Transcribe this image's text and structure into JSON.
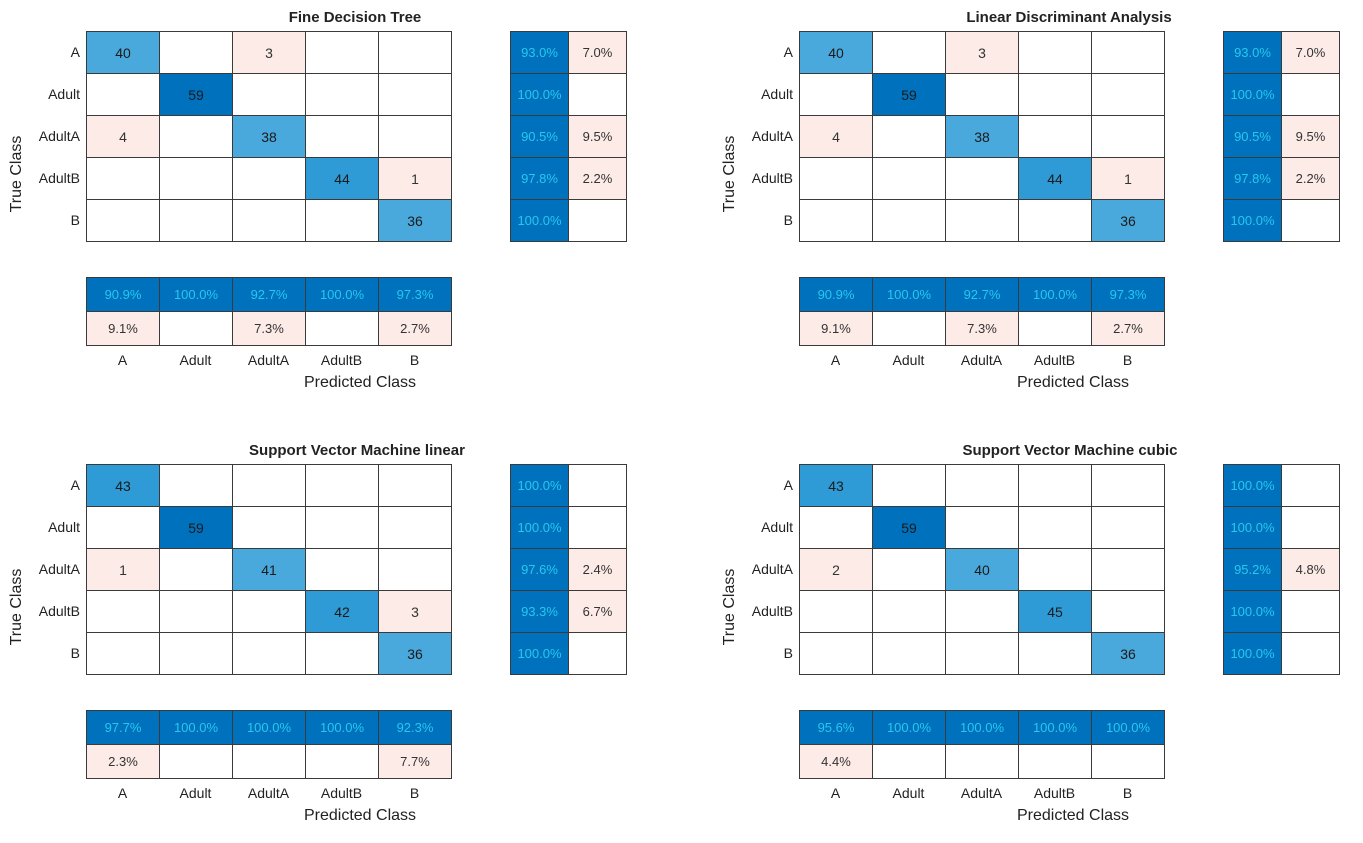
{
  "class_labels": [
    "A",
    "Adult",
    "AdultA",
    "AdultB",
    "B"
  ],
  "axis": {
    "xlabel": "Predicted Class",
    "ylabel": "True Class"
  },
  "colors": {
    "diag_strong": "#0072BD",
    "diag_medium": "#2E9BD6",
    "diag_light": "#4AA9DC",
    "error_fill": "#FCEBE6",
    "pct_text": "#25C8F0",
    "cell_text": "#333333"
  },
  "chart_data": [
    {
      "type": "heatmap",
      "title": "Fine Decision Tree",
      "matrix": [
        [
          40,
          null,
          3,
          null,
          null
        ],
        [
          null,
          59,
          null,
          null,
          null
        ],
        [
          4,
          null,
          38,
          null,
          null
        ],
        [
          null,
          null,
          null,
          44,
          1
        ],
        [
          null,
          null,
          null,
          null,
          36
        ]
      ],
      "row_summary": [
        [
          "93.0%",
          "7.0%"
        ],
        [
          "100.0%",
          ""
        ],
        [
          "90.5%",
          "9.5%"
        ],
        [
          "97.8%",
          "2.2%"
        ],
        [
          "100.0%",
          ""
        ]
      ],
      "col_summary": {
        "correct": [
          "90.9%",
          "100.0%",
          "92.7%",
          "100.0%",
          "97.3%"
        ],
        "incorrect": [
          "9.1%",
          "",
          "7.3%",
          "",
          "2.7%"
        ]
      }
    },
    {
      "type": "heatmap",
      "title": "Linear Discriminant Analysis",
      "matrix": [
        [
          40,
          null,
          3,
          null,
          null
        ],
        [
          null,
          59,
          null,
          null,
          null
        ],
        [
          4,
          null,
          38,
          null,
          null
        ],
        [
          null,
          null,
          null,
          44,
          1
        ],
        [
          null,
          null,
          null,
          null,
          36
        ]
      ],
      "row_summary": [
        [
          "93.0%",
          "7.0%"
        ],
        [
          "100.0%",
          ""
        ],
        [
          "90.5%",
          "9.5%"
        ],
        [
          "97.8%",
          "2.2%"
        ],
        [
          "100.0%",
          ""
        ]
      ],
      "col_summary": {
        "correct": [
          "90.9%",
          "100.0%",
          "92.7%",
          "100.0%",
          "97.3%"
        ],
        "incorrect": [
          "9.1%",
          "",
          "7.3%",
          "",
          "2.7%"
        ]
      }
    },
    {
      "type": "heatmap",
      "title": "Support Vector Machine linear",
      "matrix": [
        [
          43,
          null,
          null,
          null,
          null
        ],
        [
          null,
          59,
          null,
          null,
          null
        ],
        [
          1,
          null,
          41,
          null,
          null
        ],
        [
          null,
          null,
          null,
          42,
          3
        ],
        [
          null,
          null,
          null,
          null,
          36
        ]
      ],
      "row_summary": [
        [
          "100.0%",
          ""
        ],
        [
          "100.0%",
          ""
        ],
        [
          "97.6%",
          "2.4%"
        ],
        [
          "93.3%",
          "6.7%"
        ],
        [
          "100.0%",
          ""
        ]
      ],
      "col_summary": {
        "correct": [
          "97.7%",
          "100.0%",
          "100.0%",
          "100.0%",
          "92.3%"
        ],
        "incorrect": [
          "2.3%",
          "",
          "",
          "",
          "7.7%"
        ]
      }
    },
    {
      "type": "heatmap",
      "title": "Support Vector Machine cubic",
      "matrix": [
        [
          43,
          null,
          null,
          null,
          null
        ],
        [
          null,
          59,
          null,
          null,
          null
        ],
        [
          2,
          null,
          40,
          null,
          null
        ],
        [
          null,
          null,
          null,
          45,
          null
        ],
        [
          null,
          null,
          null,
          null,
          36
        ]
      ],
      "row_summary": [
        [
          "100.0%",
          ""
        ],
        [
          "100.0%",
          ""
        ],
        [
          "95.2%",
          "4.8%"
        ],
        [
          "100.0%",
          ""
        ],
        [
          "100.0%",
          ""
        ]
      ],
      "col_summary": {
        "correct": [
          "95.6%",
          "100.0%",
          "100.0%",
          "100.0%",
          "100.0%"
        ],
        "incorrect": [
          "4.4%",
          "",
          "",
          "",
          ""
        ]
      }
    }
  ]
}
